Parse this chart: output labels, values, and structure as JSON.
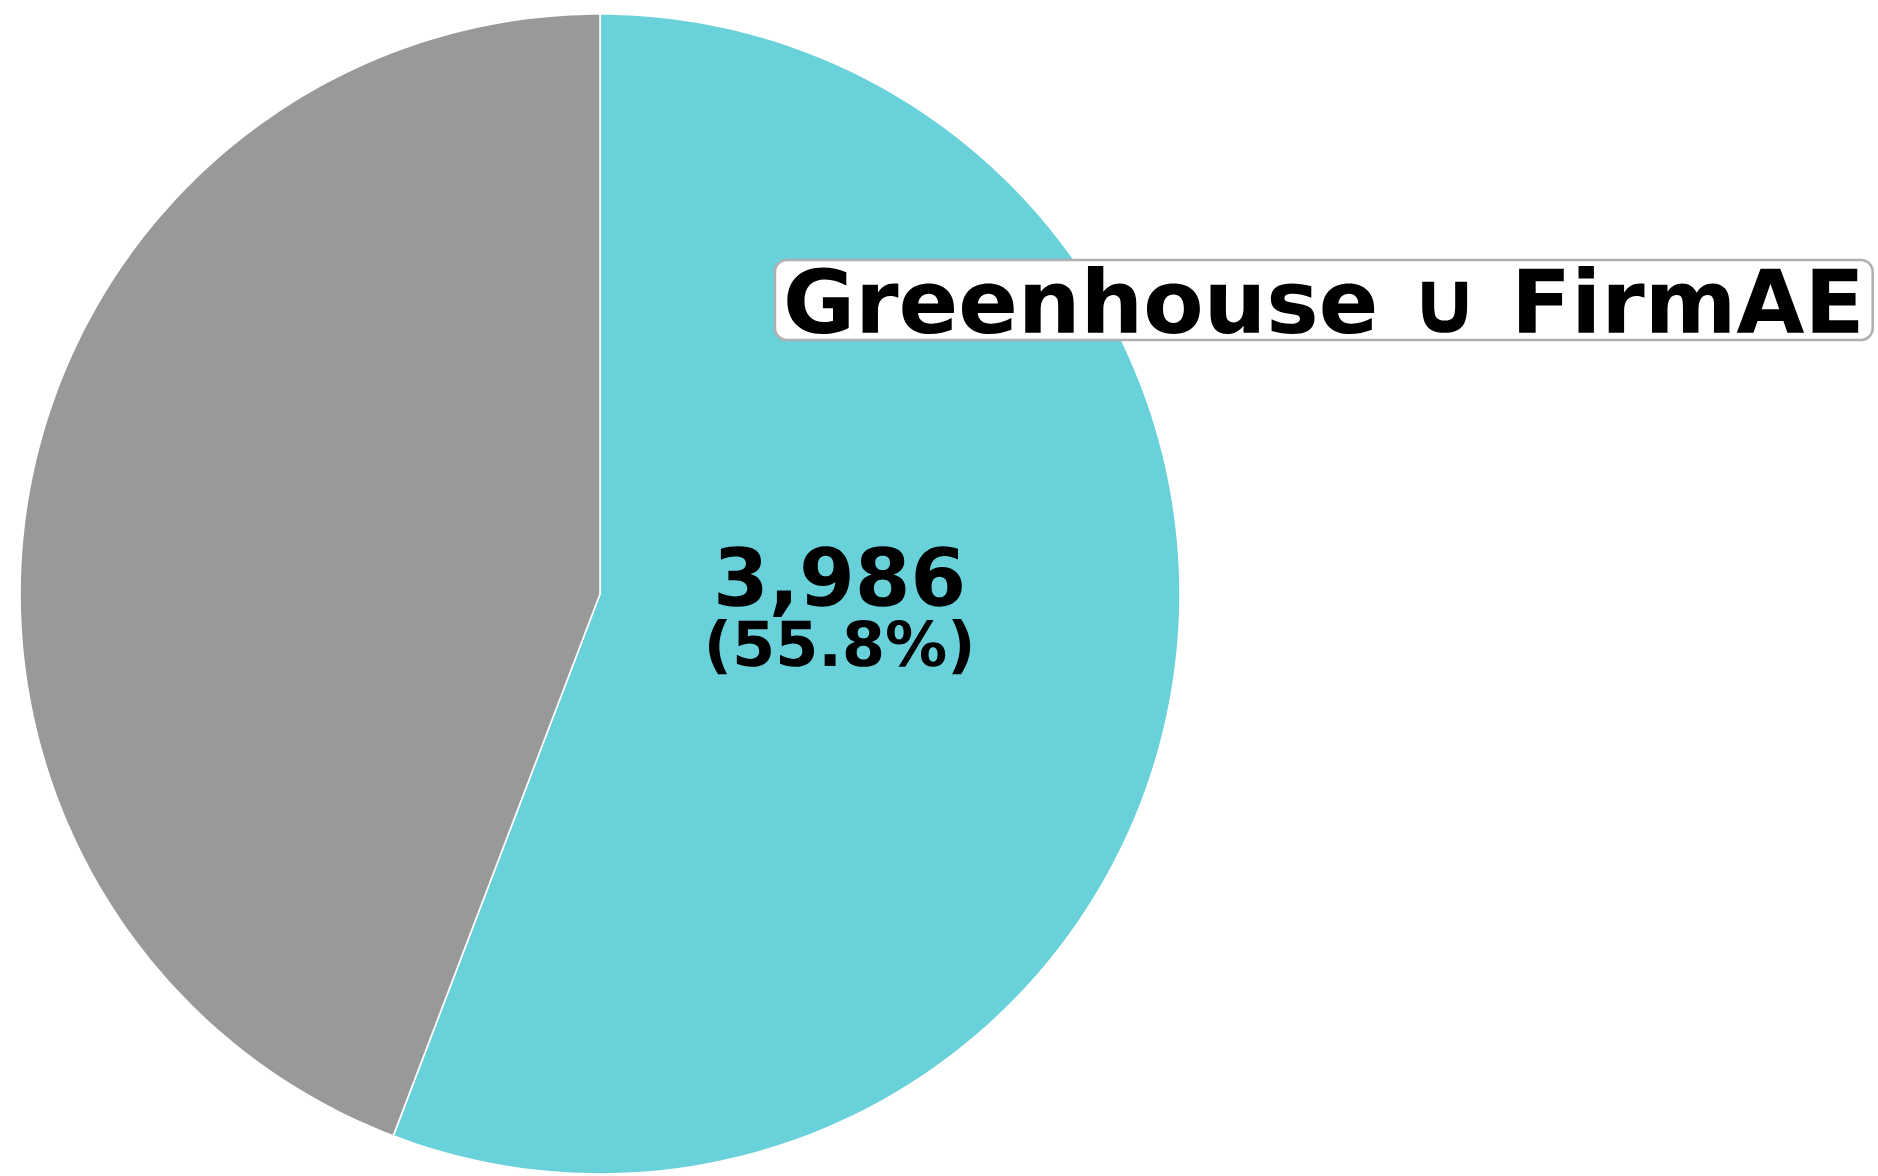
{
  "chart_data": {
    "type": "pie",
    "categories": [
      "Greenhouse ∪ FirmAE",
      null
    ],
    "values": [
      3986,
      3157
    ],
    "colors": [
      "#68d1da",
      "#999999"
    ],
    "value_labels": [
      "3,986",
      null
    ],
    "annotations": [
      "(55.8%)"
    ]
  }
}
